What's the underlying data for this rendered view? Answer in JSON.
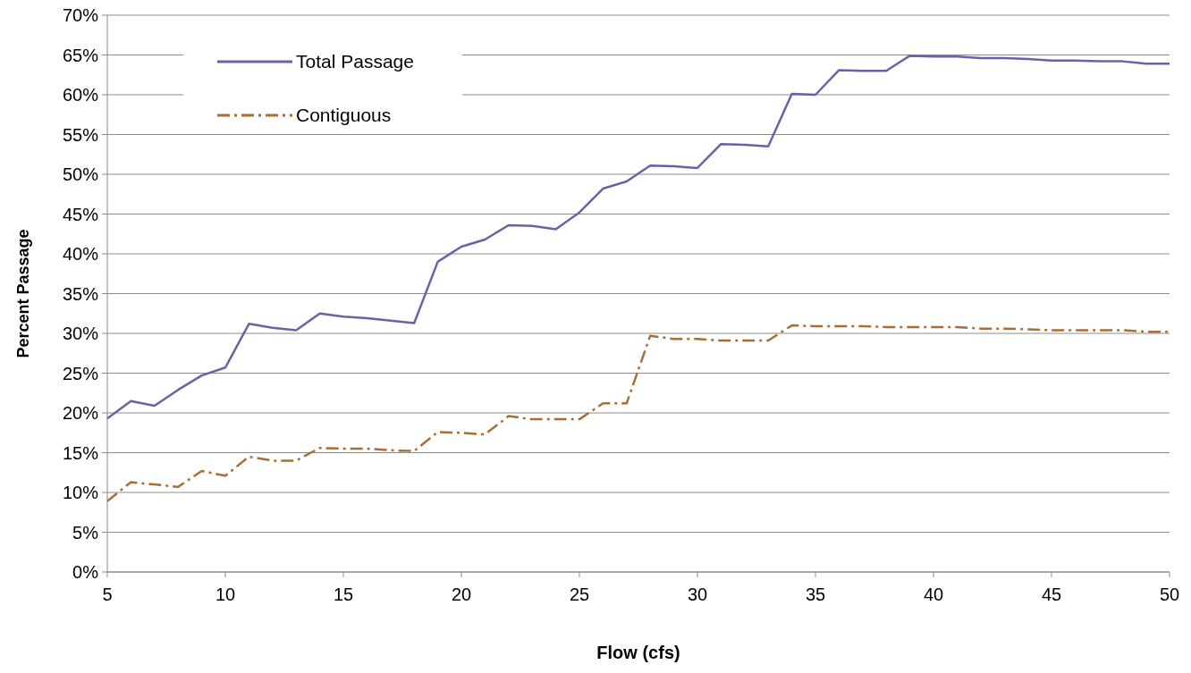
{
  "chart_data": {
    "type": "line",
    "xlabel": "Flow (cfs)",
    "ylabel": "Percent Passage",
    "x": [
      5,
      6,
      7,
      8,
      9,
      10,
      11,
      12,
      13,
      14,
      15,
      16,
      17,
      18,
      19,
      20,
      21,
      22,
      23,
      24,
      25,
      26,
      27,
      28,
      29,
      30,
      31,
      32,
      33,
      34,
      35,
      36,
      37,
      38,
      39,
      40,
      41,
      42,
      43,
      44,
      45,
      46,
      47,
      48,
      49,
      50
    ],
    "series": [
      {
        "name": "Total Passage",
        "color": "#6565a6",
        "line_style": "solid",
        "values": [
          19.3,
          21.5,
          20.9,
          22.9,
          24.7,
          25.7,
          31.2,
          30.7,
          30.4,
          32.5,
          32.1,
          31.9,
          31.6,
          31.3,
          39.0,
          40.9,
          41.8,
          43.6,
          43.5,
          43.1,
          45.2,
          48.2,
          49.1,
          51.1,
          51.0,
          50.8,
          53.8,
          53.7,
          53.5,
          60.1,
          60.0,
          63.1,
          63.0,
          63.0,
          64.9,
          64.8,
          64.8,
          64.6,
          64.6,
          64.5,
          64.3,
          64.3,
          64.2,
          64.2,
          63.9,
          63.9
        ]
      },
      {
        "name": "Contiguous",
        "color": "#a86e36",
        "line_style": "dashdot",
        "values": [
          8.9,
          11.3,
          11.0,
          10.7,
          12.7,
          12.1,
          14.5,
          14.0,
          14.0,
          15.6,
          15.5,
          15.5,
          15.3,
          15.2,
          17.6,
          17.5,
          17.3,
          19.6,
          19.2,
          19.2,
          19.2,
          21.2,
          21.2,
          29.7,
          29.3,
          29.3,
          29.1,
          29.1,
          29.1,
          31.0,
          30.9,
          30.9,
          30.9,
          30.8,
          30.8,
          30.8,
          30.8,
          30.6,
          30.6,
          30.5,
          30.4,
          30.4,
          30.4,
          30.4,
          30.2,
          30.2
        ]
      }
    ],
    "xlim": [
      5,
      50
    ],
    "xticks": [
      5,
      10,
      15,
      20,
      25,
      30,
      35,
      40,
      45,
      50
    ],
    "ylim": [
      0,
      70
    ],
    "yticks": [
      {
        "value": 0,
        "label": "0%"
      },
      {
        "value": 5,
        "label": "5%"
      },
      {
        "value": 10,
        "label": "10%"
      },
      {
        "value": 15,
        "label": "15%"
      },
      {
        "value": 20,
        "label": "20%"
      },
      {
        "value": 25,
        "label": "25%"
      },
      {
        "value": 30,
        "label": "30%"
      },
      {
        "value": 35,
        "label": "35%"
      },
      {
        "value": 40,
        "label": "40%"
      },
      {
        "value": 45,
        "label": "45%"
      },
      {
        "value": 50,
        "label": "50%"
      },
      {
        "value": 55,
        "label": "55%"
      },
      {
        "value": 60,
        "label": "60%"
      },
      {
        "value": 65,
        "label": "65%"
      },
      {
        "value": 70,
        "label": "70%"
      }
    ],
    "grid": "y",
    "legend": "top left",
    "marker": "none"
  }
}
